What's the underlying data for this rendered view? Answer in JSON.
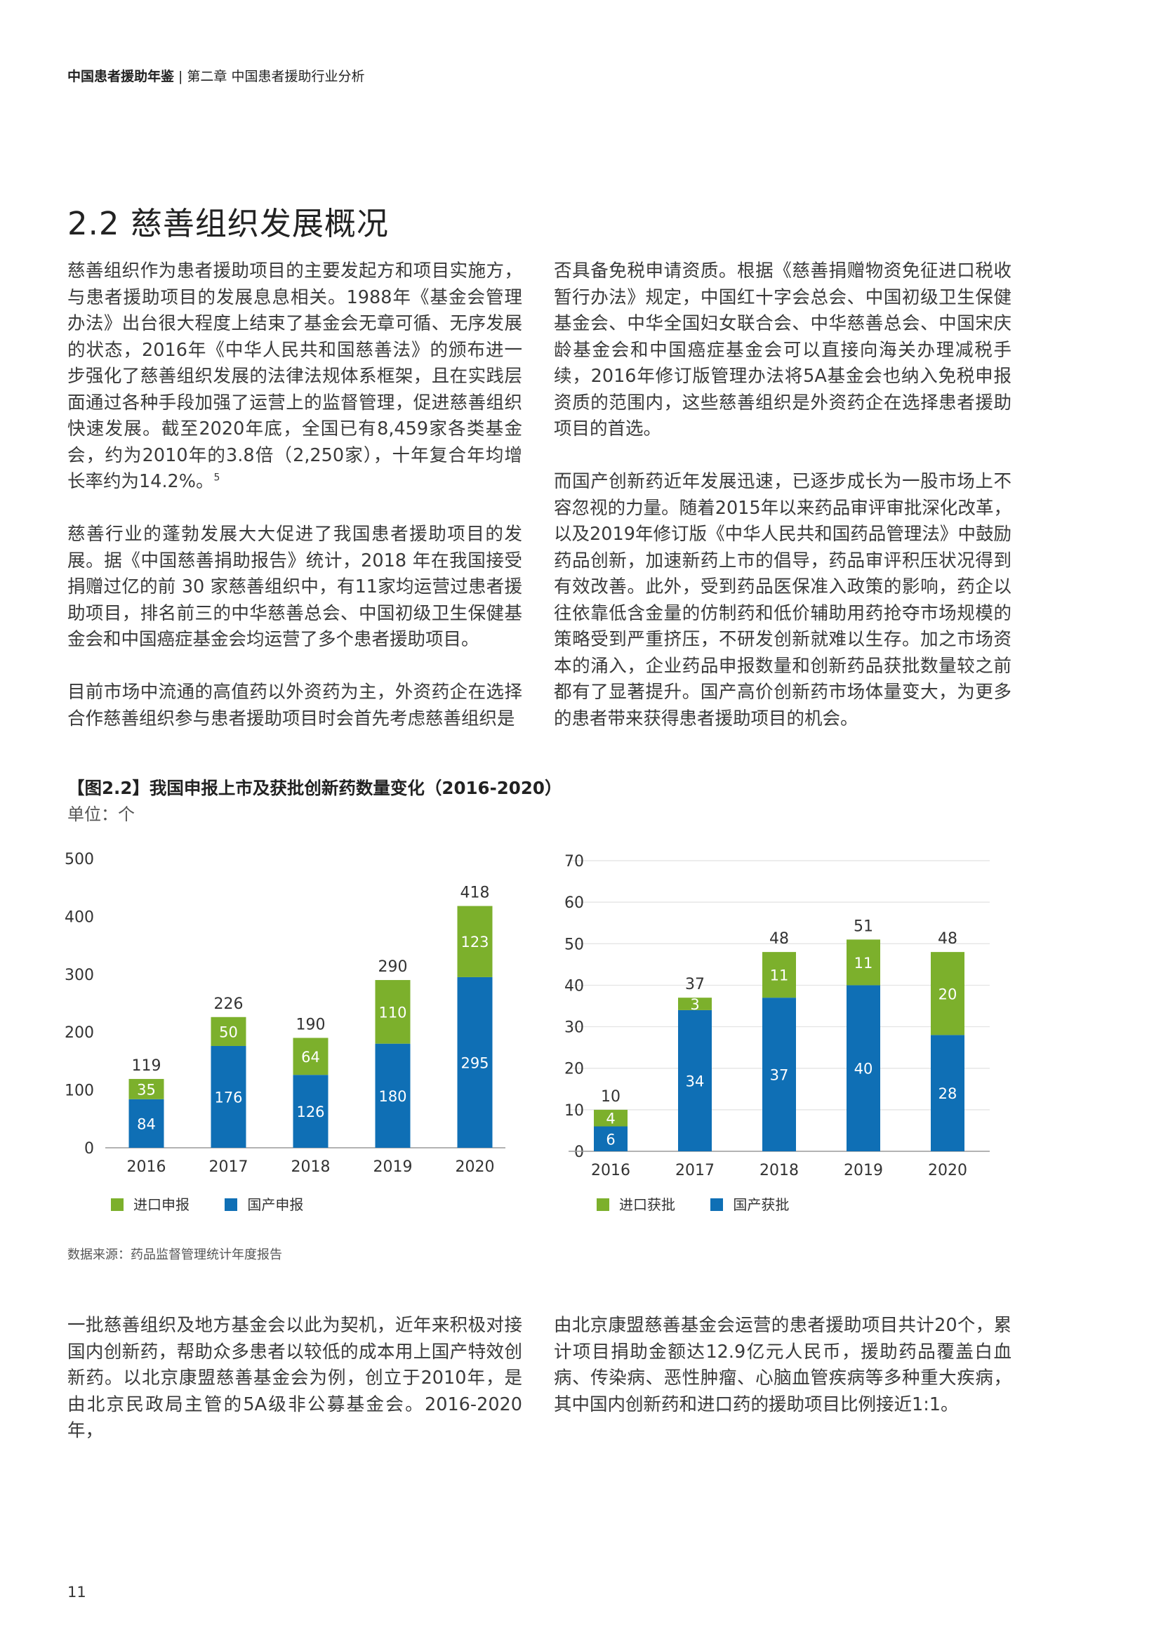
{
  "header": {
    "book_title": "中国患者援助年鉴",
    "separator": "|",
    "chapter": "第二章 中国患者援助行业分析"
  },
  "section_title": "2.2 慈善组织发展概况",
  "left_column": {
    "p1": "慈善组织作为患者援助项目的主要发起方和项目实施方，与患者援助项目的发展息息相关。1988年《基金会管理办法》出台很大程度上结束了基金会无章可循、无序发展的状态，2016年《中华人民共和国慈善法》的颁布进一步强化了慈善组织发展的法律法规体系框架，且在实践层面通过各种手段加强了运营上的监督管理，促进慈善组织快速发展。截至2020年底，全国已有8,459家各类基金会，约为2010年的3.8倍（2,250家），十年复合年均增长率约为14.2%。",
    "p1_footnote": "5",
    "p2": "慈善行业的蓬勃发展大大促进了我国患者援助项目的发展。据《中国慈善捐助报告》统计，2018 年在我国接受捐赠过亿的前 30 家慈善组织中，有11家均运营过患者援助项目，排名前三的中华慈善总会、中国初级卫生保健基金会和中国癌症基金会均运营了多个患者援助项目。",
    "p3": "目前市场中流通的高值药以外资药为主，外资药企在选择合作慈善组织参与患者援助项目时会首先考虑慈善组织是"
  },
  "right_column": {
    "p1": "否具备免税申请资质。根据《慈善捐赠物资免征进口税收暂行办法》规定，中国红十字会总会、中国初级卫生保健基金会、中华全国妇女联合会、中华慈善总会、中国宋庆龄基金会和中国癌症基金会可以直接向海关办理减税手续，2016年修订版管理办法将5A基金会也纳入免税申报资质的范围内，这些慈善组织是外资药企在选择患者援助项目的首选。",
    "p2": "而国产创新药近年发展迅速，已逐步成长为一股市场上不容忽视的力量。随着2015年以来药品审评审批深化改革，以及2019年修订版《中华人民共和国药品管理法》中鼓励药品创新，加速新药上市的倡导，药品审评积压状况得到有效改善。此外，受到药品医保准入政策的影响，药企以往依靠低含金量的仿制药和低价辅助用药抢夺市场规模的策略受到严重挤压，不研发创新就难以生存。加之市场资本的涌入，企业药品申报数量和创新药品获批数量较之前都有了显著提升。国产高价创新药市场体量变大，为更多的患者带来获得患者援助项目的机会。"
  },
  "figure": {
    "title": "【图2.2】我国申报上市及获批创新药数量变化（2016-2020）",
    "unit": "单位：个",
    "source": "数据来源：药品监督管理统计年度报告"
  },
  "colors": {
    "domestic": "#0f6fb5",
    "imported": "#7cb02c",
    "axis": "#9a9a9a",
    "grid": "#e2e2e2"
  },
  "chart_data": [
    {
      "type": "bar",
      "stacked": true,
      "categories": [
        "2016",
        "2017",
        "2018",
        "2019",
        "2020"
      ],
      "series": [
        {
          "name": "国产申报",
          "values": [
            84,
            176,
            126,
            180,
            295
          ]
        },
        {
          "name": "进口申报",
          "values": [
            35,
            50,
            64,
            110,
            123
          ]
        }
      ],
      "totals": [
        119,
        226,
        190,
        290,
        418
      ],
      "ylim": [
        0,
        500
      ],
      "yticks": [
        0,
        100,
        200,
        300,
        400,
        500
      ],
      "grid": false,
      "legend_position": "bottom-left"
    },
    {
      "type": "bar",
      "stacked": true,
      "categories": [
        "2016",
        "2017",
        "2018",
        "2019",
        "2020"
      ],
      "series": [
        {
          "name": "国产获批",
          "values": [
            6,
            34,
            37,
            40,
            28
          ]
        },
        {
          "name": "进口获批",
          "values": [
            4,
            3,
            11,
            11,
            20
          ]
        }
      ],
      "totals": [
        10,
        37,
        48,
        51,
        48
      ],
      "ylim": [
        0,
        70
      ],
      "yticks": [
        0,
        10,
        20,
        30,
        40,
        50,
        60,
        70
      ],
      "grid": true,
      "legend_position": "bottom-left"
    }
  ],
  "bottom_left": "一批慈善组织及地方基金会以此为契机，近年来积极对接国内创新药，帮助众多患者以较低的成本用上国产特效创新药。以北京康盟慈善基金会为例，创立于2010年，是由北京民政局主管的5A级非公募基金会。2016-2020年，",
  "bottom_right": "由北京康盟慈善基金会运营的患者援助项目共计20个，累计项目捐助金额达12.9亿元人民币，援助药品覆盖白血病、传染病、恶性肿瘤、心脑血管疾病等多种重大疾病，其中国内创新药和进口药的援助项目比例接近1:1。",
  "page_number": "11"
}
